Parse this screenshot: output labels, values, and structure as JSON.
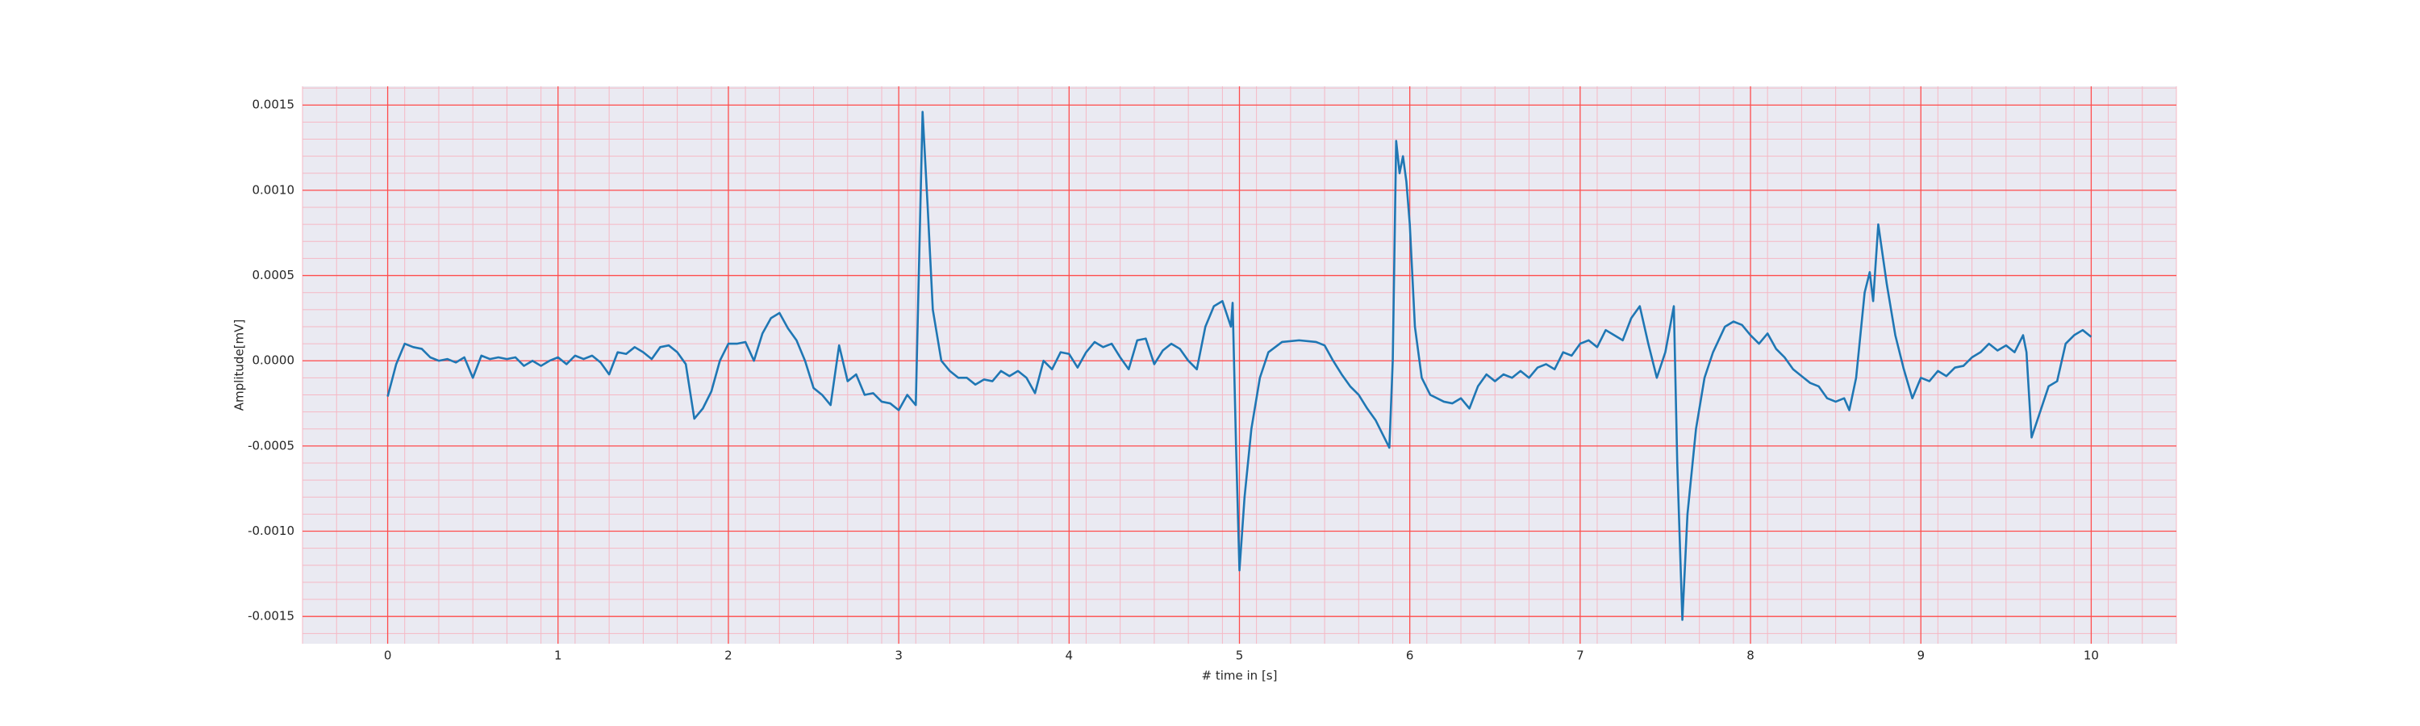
{
  "chart_data": {
    "type": "line",
    "x_label": "# time in [s]",
    "y_label": "Amplitude[mV]",
    "color": "#1f77b4",
    "xlim": [
      -0.5,
      10.5
    ],
    "xticks": [
      0,
      1,
      2,
      3,
      4,
      5,
      6,
      7,
      8,
      9,
      10
    ],
    "ylim": [
      -0.00166,
      0.00161
    ],
    "yticks": [
      -0.0015,
      {
        "value": -0.001,
        "label": "-0.0010"
      },
      -0.0005,
      {
        "value": 0,
        "label": "0.0000"
      },
      0.0005,
      {
        "value": 0.001,
        "label": "0.0010"
      },
      0.0015
    ],
    "grid": true,
    "grid_color": "#ff4d4d",
    "minor_grid_color": "#f5b8c4",
    "minor_divisions": 5,
    "background": "#eaeaf2",
    "x": [
      0,
      0.05,
      0.1,
      0.15,
      0.2,
      0.25,
      0.3,
      0.35,
      0.4,
      0.45,
      0.5,
      0.55,
      0.6,
      0.65,
      0.7,
      0.75,
      0.8,
      0.85,
      0.9,
      0.95,
      1.0,
      1.05,
      1.1,
      1.15,
      1.2,
      1.25,
      1.3,
      1.35,
      1.4,
      1.45,
      1.5,
      1.55,
      1.6,
      1.65,
      1.7,
      1.75,
      1.8,
      1.85,
      1.9,
      1.95,
      2.0,
      2.05,
      2.1,
      2.15,
      2.2,
      2.25,
      2.3,
      2.35,
      2.4,
      2.45,
      2.5,
      2.55,
      2.6,
      2.65,
      2.7,
      2.75,
      2.8,
      2.85,
      2.9,
      2.95,
      3.0,
      3.05,
      3.1,
      3.12,
      3.14,
      3.17,
      3.2,
      3.25,
      3.3,
      3.35,
      3.4,
      3.45,
      3.5,
      3.55,
      3.6,
      3.65,
      3.7,
      3.75,
      3.8,
      3.85,
      3.9,
      3.95,
      4.0,
      4.05,
      4.1,
      4.15,
      4.2,
      4.25,
      4.3,
      4.35,
      4.4,
      4.45,
      4.5,
      4.55,
      4.6,
      4.65,
      4.7,
      4.75,
      4.8,
      4.85,
      4.9,
      4.95,
      4.96,
      4.98,
      5.0,
      5.03,
      5.07,
      5.12,
      5.17,
      5.25,
      5.35,
      5.45,
      5.5,
      5.55,
      5.6,
      5.65,
      5.7,
      5.75,
      5.8,
      5.85,
      5.88,
      5.9,
      5.92,
      5.94,
      5.96,
      5.98,
      6.0,
      6.03,
      6.07,
      6.12,
      6.2,
      6.25,
      6.3,
      6.35,
      6.4,
      6.45,
      6.5,
      6.55,
      6.6,
      6.65,
      6.7,
      6.75,
      6.8,
      6.85,
      6.9,
      6.95,
      7.0,
      7.05,
      7.1,
      7.15,
      7.2,
      7.25,
      7.3,
      7.35,
      7.4,
      7.45,
      7.5,
      7.55,
      7.57,
      7.6,
      7.63,
      7.68,
      7.73,
      7.78,
      7.85,
      7.9,
      7.95,
      8.0,
      8.05,
      8.1,
      8.15,
      8.2,
      8.25,
      8.3,
      8.35,
      8.4,
      8.45,
      8.5,
      8.55,
      8.58,
      8.62,
      8.67,
      8.7,
      8.72,
      8.75,
      8.8,
      8.85,
      8.9,
      8.95,
      9.0,
      9.05,
      9.1,
      9.15,
      9.2,
      9.25,
      9.3,
      9.35,
      9.4,
      9.45,
      9.5,
      9.55,
      9.6,
      9.62,
      9.65,
      9.7,
      9.75,
      9.8,
      9.85,
      9.9,
      9.95,
      10.0
    ],
    "values": [
      -0.00021,
      -2e-05,
      0.0001,
      8e-05,
      7e-05,
      2e-05,
      0,
      1e-05,
      -1e-05,
      2e-05,
      -0.0001,
      3e-05,
      1e-05,
      2e-05,
      1e-05,
      2e-05,
      -3e-05,
      0,
      -3e-05,
      0,
      2e-05,
      -2e-05,
      3e-05,
      1e-05,
      3e-05,
      -1e-05,
      -8e-05,
      5e-05,
      4e-05,
      8e-05,
      5e-05,
      1e-05,
      8e-05,
      9e-05,
      5e-05,
      -2e-05,
      -0.00034,
      -0.00028,
      -0.00018,
      0,
      0.0001,
      0.0001,
      0.00011,
      0,
      0.00016,
      0.00025,
      0.00028,
      0.00019,
      0.00012,
      0,
      -0.00016,
      -0.0002,
      -0.00026,
      9e-05,
      -0.00012,
      -8e-05,
      -0.0002,
      -0.00019,
      -0.00024,
      -0.00025,
      -0.00029,
      -0.0002,
      -0.00026,
      0.0006,
      0.00146,
      0.0009,
      0.0003,
      0,
      -6e-05,
      -0.0001,
      -0.0001,
      -0.00014,
      -0.00011,
      -0.00012,
      -6e-05,
      -9e-05,
      -6e-05,
      -0.0001,
      -0.00019,
      0,
      -5e-05,
      5e-05,
      4e-05,
      -4e-05,
      5e-05,
      0.00011,
      8e-05,
      0.0001,
      2e-05,
      -5e-05,
      0.00012,
      0.00013,
      -2e-05,
      6e-05,
      0.0001,
      7e-05,
      0,
      -5e-05,
      0.0002,
      0.00032,
      0.00035,
      0.0002,
      0.00034,
      -0.0005,
      -0.00123,
      -0.0008,
      -0.0004,
      -0.0001,
      5e-05,
      0.00011,
      0.00012,
      0.00011,
      9e-05,
      0,
      -8e-05,
      -0.00015,
      -0.0002,
      -0.00028,
      -0.00035,
      -0.00045,
      -0.00051,
      0,
      0.00129,
      0.0011,
      0.0012,
      0.00105,
      0.0008,
      0.0002,
      -0.0001,
      -0.0002,
      -0.00024,
      -0.00025,
      -0.00022,
      -0.00028,
      -0.00015,
      -8e-05,
      -0.00012,
      -8e-05,
      -0.0001,
      -6e-05,
      -0.0001,
      -4e-05,
      -2e-05,
      -5e-05,
      5e-05,
      3e-05,
      0.0001,
      0.00012,
      8e-05,
      0.00018,
      0.00015,
      0.00012,
      0.00025,
      0.00032,
      0.0001,
      -0.0001,
      5e-05,
      0.00032,
      -0.0006,
      -0.00152,
      -0.0009,
      -0.0004,
      -0.0001,
      5e-05,
      0.0002,
      0.00023,
      0.00021,
      0.00015,
      0.0001,
      0.00016,
      7e-05,
      2e-05,
      -5e-05,
      -9e-05,
      -0.00013,
      -0.00015,
      -0.00022,
      -0.00024,
      -0.00022,
      -0.00029,
      -0.0001,
      0.0004,
      0.00052,
      0.00035,
      0.0008,
      0.00045,
      0.00015,
      -5e-05,
      -0.00022,
      -0.0001,
      -0.00012,
      -6e-05,
      -9e-05,
      -4e-05,
      -3e-05,
      2e-05,
      5e-05,
      0.0001,
      6e-05,
      9e-05,
      5e-05,
      0.00015,
      5e-05,
      -0.00045,
      -0.0003,
      -0.00015,
      -0.00012,
      0.0001,
      0.00015,
      0.00018,
      0.00014
    ]
  }
}
